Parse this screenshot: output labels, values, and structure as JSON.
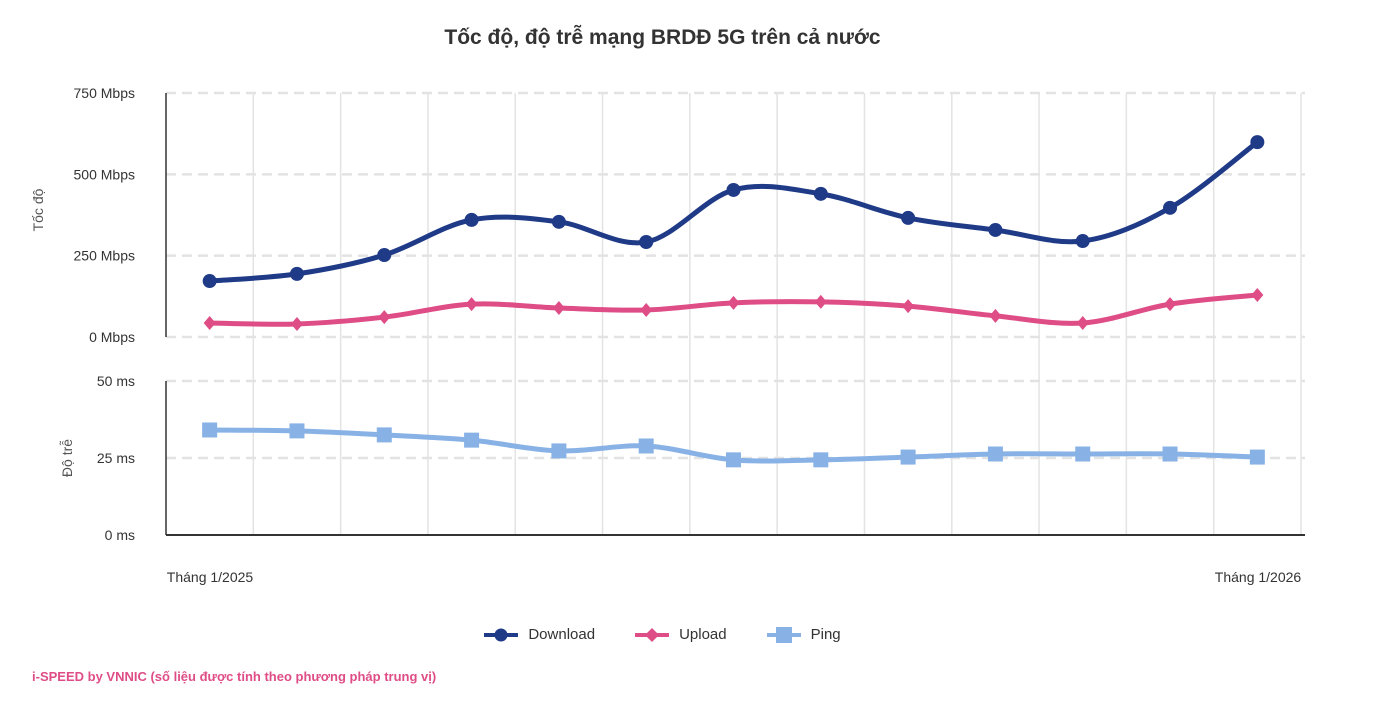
{
  "chart_data": {
    "type": "line",
    "title": "Tốc độ, độ trễ mạng BRDĐ 5G trên cả nước",
    "x_tick_labels": [
      "Tháng 1/2025",
      "Tháng 1/2026"
    ],
    "panels": [
      {
        "ylabel": "Tốc độ",
        "unit": "Mbps",
        "ylim": [
          0,
          750
        ],
        "y_ticks": [
          "0 Mbps",
          "250 Mbps",
          "500 Mbps",
          "750 Mbps"
        ],
        "series": [
          {
            "name": "Download",
            "color": "#1f3a87",
            "marker": "circle",
            "values": [
              172,
              194,
              252,
              360,
              354,
              292,
              452,
              440,
              366,
              329,
              295,
              397,
              599
            ]
          },
          {
            "name": "Upload",
            "color": "#df4d87",
            "marker": "diamond",
            "values": [
              43,
              40,
              61,
              101,
              89,
              83,
              105,
              108,
              95,
              65,
              43,
              101,
              129
            ]
          }
        ]
      },
      {
        "ylabel": "Độ trễ",
        "unit": "ms",
        "ylim": [
          0,
          50
        ],
        "y_ticks": [
          "0 ms",
          "25 ms",
          "50 ms"
        ],
        "series": [
          {
            "name": "Ping",
            "color": "#88b2e6",
            "marker": "square",
            "values": [
              34.1,
              33.8,
              32.5,
              30.8,
              27.3,
              28.9,
              24.4,
              24.4,
              25.3,
              26.3,
              26.3,
              26.3,
              25.3
            ]
          }
        ]
      }
    ],
    "n_points": 13,
    "grid": true,
    "legend_position": "bottom"
  },
  "credit": {
    "text": "i-SPEED by VNNIC (số liệu được tính theo phương pháp trung vị)",
    "color": "#df4d87"
  }
}
